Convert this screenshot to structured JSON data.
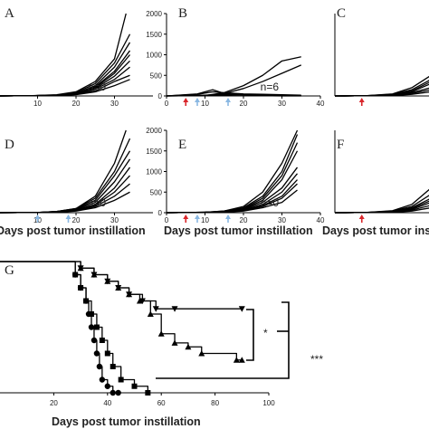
{
  "chart_data": [
    {
      "panel": "A",
      "type": "line",
      "xlim": [
        0,
        40
      ],
      "ylim": [
        0,
        2000
      ],
      "xticks": [
        10,
        20,
        30
      ],
      "yticks": [],
      "n_label": "n=0",
      "arrows": {
        "red": [],
        "blue": []
      },
      "series": [
        {
          "x": [
            0,
            8,
            15,
            20,
            25,
            30,
            33
          ],
          "y": [
            0,
            5,
            30,
            100,
            350,
            900,
            2000
          ]
        },
        {
          "x": [
            0,
            8,
            15,
            20,
            25,
            30,
            34
          ],
          "y": [
            0,
            5,
            20,
            80,
            300,
            800,
            1500
          ]
        },
        {
          "x": [
            0,
            8,
            15,
            20,
            25,
            30,
            34
          ],
          "y": [
            0,
            5,
            20,
            60,
            250,
            700,
            1300
          ]
        },
        {
          "x": [
            0,
            8,
            15,
            20,
            25,
            30,
            34
          ],
          "y": [
            0,
            5,
            20,
            60,
            220,
            600,
            1100
          ]
        },
        {
          "x": [
            0,
            8,
            15,
            20,
            25,
            30,
            34
          ],
          "y": [
            0,
            5,
            20,
            60,
            200,
            550,
            1000
          ]
        },
        {
          "x": [
            0,
            8,
            15,
            20,
            25,
            30,
            34
          ],
          "y": [
            0,
            5,
            15,
            50,
            180,
            480,
            850
          ]
        },
        {
          "x": [
            0,
            8,
            15,
            20,
            25,
            30,
            34
          ],
          "y": [
            0,
            5,
            15,
            45,
            160,
            400,
            700
          ]
        },
        {
          "x": [
            0,
            8,
            15,
            20,
            25,
            30,
            34
          ],
          "y": [
            0,
            5,
            10,
            40,
            120,
            350,
            500
          ]
        },
        {
          "x": [
            0,
            8,
            15,
            20,
            25,
            30,
            34
          ],
          "y": [
            0,
            5,
            10,
            30,
            100,
            250,
            400
          ]
        }
      ]
    },
    {
      "panel": "B",
      "type": "line",
      "xlim": [
        0,
        40
      ],
      "ylim": [
        0,
        2000
      ],
      "xticks": [
        0,
        10,
        20,
        30,
        40
      ],
      "yticks": [
        0,
        500,
        1000,
        1500,
        2000
      ],
      "n_label": "n=6",
      "arrows": {
        "red": [
          5
        ],
        "blue": [
          8,
          16
        ]
      },
      "series": [
        {
          "x": [
            0,
            10,
            15,
            20,
            25,
            30,
            35
          ],
          "y": [
            0,
            10,
            80,
            250,
            500,
            850,
            950
          ]
        },
        {
          "x": [
            0,
            10,
            15,
            20,
            25,
            30,
            35
          ],
          "y": [
            0,
            10,
            60,
            180,
            350,
            550,
            750
          ]
        },
        {
          "x": [
            0,
            8,
            12,
            15,
            20,
            25,
            30,
            35
          ],
          "y": [
            0,
            50,
            150,
            60,
            30,
            20,
            10,
            5
          ]
        },
        {
          "x": [
            0,
            8,
            12,
            15,
            20,
            25,
            30,
            35
          ],
          "y": [
            0,
            40,
            100,
            80,
            50,
            40,
            30,
            20
          ]
        },
        {
          "x": [
            0,
            10,
            15,
            20,
            25,
            30,
            35
          ],
          "y": [
            0,
            20,
            40,
            30,
            20,
            10,
            5
          ]
        },
        {
          "x": [
            0,
            10,
            15,
            20,
            25,
            30,
            35
          ],
          "y": [
            0,
            10,
            10,
            5,
            5,
            0,
            0
          ]
        }
      ]
    },
    {
      "panel": "C",
      "type": "line",
      "xlim": [
        0,
        40
      ],
      "ylim": [
        0,
        2000
      ],
      "xticks": [],
      "yticks": [],
      "n_label": "",
      "arrows": {
        "red": [
          7
        ],
        "blue": []
      },
      "series": [
        {
          "x": [
            0,
            8,
            15,
            20,
            25,
            30
          ],
          "y": [
            0,
            5,
            50,
            200,
            500,
            1300
          ]
        },
        {
          "x": [
            0,
            8,
            15,
            20,
            25,
            30
          ],
          "y": [
            0,
            5,
            40,
            150,
            400,
            900
          ]
        },
        {
          "x": [
            0,
            8,
            15,
            20,
            25,
            30
          ],
          "y": [
            0,
            5,
            30,
            120,
            350,
            750
          ]
        },
        {
          "x": [
            0,
            8,
            15,
            20,
            25,
            30
          ],
          "y": [
            0,
            5,
            20,
            100,
            300,
            600
          ]
        },
        {
          "x": [
            0,
            8,
            15,
            20,
            25,
            30
          ],
          "y": [
            0,
            5,
            20,
            80,
            200,
            450
          ]
        },
        {
          "x": [
            0,
            8,
            15,
            20,
            25,
            30
          ],
          "y": [
            0,
            5,
            15,
            60,
            150,
            350
          ]
        },
        {
          "x": [
            0,
            8,
            15,
            20,
            25,
            30
          ],
          "y": [
            0,
            5,
            10,
            40,
            100,
            250
          ]
        }
      ]
    },
    {
      "panel": "D",
      "type": "line",
      "xlim": [
        0,
        40
      ],
      "ylim": [
        0,
        2000
      ],
      "xticks": [
        10,
        20,
        30
      ],
      "yticks": [],
      "n_label": "n=0",
      "xlabel": "Days post tumor instillation",
      "arrows": {
        "red": [],
        "blue": [
          10,
          18
        ]
      },
      "series": [
        {
          "x": [
            0,
            10,
            15,
            20,
            25,
            30,
            33
          ],
          "y": [
            0,
            5,
            30,
            100,
            400,
            1200,
            2000
          ]
        },
        {
          "x": [
            0,
            10,
            15,
            20,
            25,
            30,
            34
          ],
          "y": [
            0,
            5,
            30,
            100,
            350,
            1000,
            1800
          ]
        },
        {
          "x": [
            0,
            10,
            15,
            20,
            25,
            30,
            34
          ],
          "y": [
            0,
            5,
            30,
            90,
            300,
            900,
            1500
          ]
        },
        {
          "x": [
            0,
            10,
            15,
            20,
            25,
            30,
            34
          ],
          "y": [
            0,
            5,
            25,
            80,
            250,
            750,
            1300
          ]
        },
        {
          "x": [
            0,
            10,
            15,
            20,
            25,
            30,
            34
          ],
          "y": [
            0,
            5,
            20,
            70,
            200,
            600,
            1100
          ]
        },
        {
          "x": [
            0,
            10,
            15,
            20,
            25,
            30,
            34
          ],
          "y": [
            0,
            5,
            20,
            60,
            180,
            500,
            900
          ]
        },
        {
          "x": [
            0,
            10,
            15,
            20,
            25,
            30,
            34
          ],
          "y": [
            0,
            5,
            15,
            50,
            150,
            400,
            700
          ]
        },
        {
          "x": [
            0,
            10,
            15,
            20,
            25,
            30,
            34
          ],
          "y": [
            0,
            5,
            10,
            40,
            120,
            300,
            500
          ]
        }
      ]
    },
    {
      "panel": "E",
      "type": "line",
      "xlim": [
        0,
        40
      ],
      "ylim": [
        0,
        2000
      ],
      "xticks": [
        0,
        10,
        20,
        30,
        40
      ],
      "yticks": [
        0,
        500,
        1000,
        1500,
        2000
      ],
      "n_label": "n=0",
      "xlabel": "Days post tumor instillation",
      "arrows": {
        "red": [
          5
        ],
        "blue": [
          8,
          16
        ]
      },
      "series": [
        {
          "x": [
            0,
            10,
            15,
            20,
            25,
            30,
            34
          ],
          "y": [
            0,
            10,
            40,
            150,
            500,
            1200,
            2000
          ]
        },
        {
          "x": [
            0,
            10,
            15,
            20,
            25,
            30,
            34
          ],
          "y": [
            0,
            10,
            40,
            120,
            400,
            1000,
            1900
          ]
        },
        {
          "x": [
            0,
            10,
            15,
            20,
            25,
            30,
            34
          ],
          "y": [
            0,
            10,
            30,
            100,
            350,
            900,
            1700
          ]
        },
        {
          "x": [
            0,
            10,
            15,
            20,
            25,
            30,
            34
          ],
          "y": [
            0,
            10,
            30,
            90,
            300,
            800,
            1500
          ]
        },
        {
          "x": [
            0,
            10,
            15,
            20,
            25,
            30,
            34
          ],
          "y": [
            0,
            10,
            25,
            80,
            250,
            600,
            1100
          ]
        },
        {
          "x": [
            0,
            10,
            15,
            20,
            25,
            30,
            34
          ],
          "y": [
            0,
            10,
            20,
            70,
            200,
            500,
            950
          ]
        },
        {
          "x": [
            0,
            10,
            15,
            20,
            25,
            30,
            34
          ],
          "y": [
            0,
            10,
            20,
            60,
            170,
            400,
            800
          ]
        },
        {
          "x": [
            0,
            10,
            15,
            20,
            25,
            30,
            34
          ],
          "y": [
            0,
            10,
            15,
            50,
            150,
            350,
            700
          ]
        },
        {
          "x": [
            0,
            10,
            15,
            20,
            25,
            30,
            34
          ],
          "y": [
            0,
            5,
            10,
            40,
            120,
            250,
            550
          ]
        }
      ]
    },
    {
      "panel": "F",
      "type": "line",
      "xlim": [
        0,
        40
      ],
      "ylim": [
        0,
        2000
      ],
      "xticks": [],
      "yticks": [],
      "n_label": "",
      "xlabel": "Days post tumor instillation",
      "arrows": {
        "red": [
          7
        ],
        "blue": []
      },
      "series": [
        {
          "x": [
            0,
            8,
            15,
            20,
            25,
            28
          ],
          "y": [
            0,
            5,
            50,
            200,
            600,
            950
          ]
        },
        {
          "x": [
            0,
            8,
            15,
            20,
            25,
            28
          ],
          "y": [
            0,
            5,
            40,
            150,
            450,
            800
          ]
        },
        {
          "x": [
            0,
            8,
            15,
            20,
            25,
            28
          ],
          "y": [
            0,
            5,
            30,
            120,
            350,
            650
          ]
        },
        {
          "x": [
            0,
            8,
            15,
            20,
            25,
            28
          ],
          "y": [
            0,
            5,
            25,
            100,
            300,
            550
          ]
        },
        {
          "x": [
            0,
            8,
            15,
            20,
            25,
            28
          ],
          "y": [
            0,
            5,
            20,
            80,
            250,
            450
          ]
        },
        {
          "x": [
            0,
            8,
            15,
            20,
            25,
            28
          ],
          "y": [
            0,
            5,
            15,
            60,
            180,
            350
          ]
        },
        {
          "x": [
            0,
            8,
            15,
            20,
            25,
            28
          ],
          "y": [
            0,
            5,
            10,
            40,
            120,
            250
          ]
        }
      ]
    },
    {
      "panel": "G",
      "type": "line",
      "subtype": "survival",
      "xlim": [
        0,
        100
      ],
      "ylim": [
        0,
        100
      ],
      "xticks": [
        20,
        40,
        60,
        80,
        100
      ],
      "yticks": [],
      "xlabel": "Days post tumor instillation",
      "significance": [
        "*",
        "***"
      ],
      "series": [
        {
          "marker": "circle",
          "x": [
            0,
            28,
            30,
            32,
            33,
            34,
            35,
            36,
            37,
            38,
            40,
            42,
            44
          ],
          "y": [
            100,
            90,
            80,
            70,
            60,
            50,
            40,
            30,
            20,
            10,
            5,
            0,
            0
          ]
        },
        {
          "marker": "square",
          "x": [
            0,
            28,
            30,
            32,
            34,
            36,
            38,
            40,
            42,
            45,
            50,
            55
          ],
          "y": [
            100,
            90,
            80,
            70,
            60,
            50,
            40,
            30,
            20,
            10,
            5,
            0
          ]
        },
        {
          "marker": "triangle-down",
          "x": [
            0,
            30,
            35,
            40,
            44,
            48,
            53,
            58,
            65,
            90
          ],
          "y": [
            100,
            95,
            90,
            85,
            80,
            75,
            70,
            64,
            64,
            64
          ]
        },
        {
          "marker": "triangle-up",
          "x": [
            0,
            30,
            35,
            40,
            44,
            48,
            52,
            56,
            60,
            65,
            70,
            75,
            88,
            90
          ],
          "y": [
            100,
            95,
            90,
            85,
            80,
            75,
            70,
            60,
            45,
            38,
            35,
            30,
            25,
            25
          ]
        }
      ]
    }
  ]
}
